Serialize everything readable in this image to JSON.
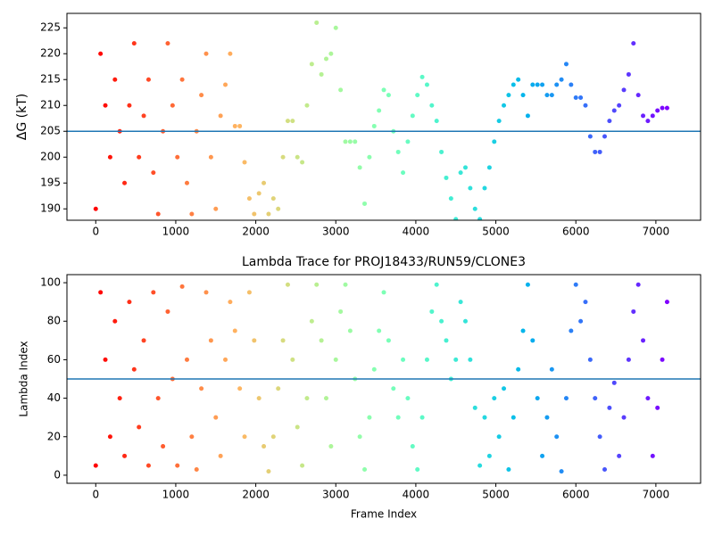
{
  "chart_data": [
    {
      "type": "scatter",
      "ylabel": "ΔG (kT)",
      "colormap": "rainbow_r",
      "hline": 205,
      "hline_color": "#1f77b4",
      "xlim": [
        -360,
        7559
      ],
      "ylim": [
        187.8,
        227.8
      ],
      "xticks": [
        0,
        1000,
        2000,
        3000,
        4000,
        5000,
        6000,
        7000
      ],
      "yticks": [
        190,
        195,
        200,
        205,
        210,
        215,
        220,
        225
      ],
      "x": [
        0,
        60,
        120,
        180,
        240,
        300,
        360,
        420,
        480,
        540,
        600,
        660,
        720,
        780,
        840,
        900,
        960,
        1020,
        1080,
        1140,
        1200,
        1260,
        1320,
        1380,
        1440,
        1500,
        1560,
        1620,
        1680,
        1740,
        1800,
        1860,
        1920,
        1980,
        2040,
        2100,
        2160,
        2220,
        2280,
        2340,
        2400,
        2460,
        2520,
        2580,
        2640,
        2700,
        2760,
        2820,
        2880,
        2940,
        3000,
        3060,
        3120,
        3180,
        3240,
        3300,
        3360,
        3420,
        3480,
        3540,
        3600,
        3660,
        3720,
        3780,
        3840,
        3900,
        3960,
        4020,
        4080,
        4140,
        4200,
        4260,
        4320,
        4380,
        4440,
        4500,
        4560,
        4620,
        4680,
        4740,
        4800,
        4860,
        4920,
        4980,
        5040,
        5100,
        5160,
        5220,
        5280,
        5340,
        5400,
        5460,
        5520,
        5580,
        5640,
        5700,
        5760,
        5820,
        5880,
        5940,
        6000,
        6060,
        6120,
        6180,
        6240,
        6300,
        6360,
        6420,
        6480,
        6540,
        6600,
        6660,
        6720,
        6780,
        6840,
        6900,
        6960,
        7020,
        7080,
        7140
      ],
      "values": [
        190,
        220,
        210,
        200,
        215,
        205,
        195,
        210,
        222,
        200,
        208,
        215,
        197,
        189,
        205,
        222,
        210,
        200,
        215,
        195,
        189,
        205,
        212,
        220,
        200,
        190,
        208,
        214,
        220,
        206,
        206,
        199,
        192,
        189,
        193,
        195,
        189,
        192,
        190,
        200,
        207,
        207,
        200,
        199,
        210,
        218,
        226,
        216,
        219,
        220,
        225,
        213,
        203,
        203,
        203,
        198,
        191,
        200,
        206,
        209,
        213,
        212,
        205,
        201,
        197,
        203,
        208,
        212,
        215.5,
        214,
        210,
        207,
        201,
        196,
        192,
        188,
        197,
        198,
        194,
        190,
        188,
        194,
        198,
        203,
        207,
        210,
        212,
        214,
        215,
        212,
        208,
        214,
        214,
        214,
        212,
        212,
        214,
        215,
        218,
        214,
        211.5,
        211.5,
        210,
        204,
        201,
        201,
        204,
        207,
        209,
        210,
        213,
        216,
        222,
        212,
        208,
        207,
        208,
        209,
        209.5,
        209.5
      ]
    },
    {
      "type": "scatter",
      "title": "Lambda Trace for PROJ18433/RUN59/CLONE3",
      "xlabel": "Frame Index",
      "ylabel": "Lambda Index",
      "colormap": "rainbow_r",
      "hline": 50,
      "hline_color": "#1f77b4",
      "xlim": [
        -360,
        7559
      ],
      "ylim": [
        -4.2,
        104.2
      ],
      "xticks": [
        0,
        1000,
        2000,
        3000,
        4000,
        5000,
        6000,
        7000
      ],
      "yticks": [
        0,
        20,
        40,
        60,
        80,
        100
      ],
      "x": [
        0,
        60,
        120,
        180,
        240,
        300,
        360,
        420,
        480,
        540,
        600,
        660,
        720,
        780,
        840,
        900,
        960,
        1020,
        1080,
        1140,
        1200,
        1260,
        1320,
        1380,
        1440,
        1500,
        1560,
        1620,
        1680,
        1740,
        1800,
        1860,
        1920,
        1980,
        2040,
        2100,
        2160,
        2220,
        2280,
        2340,
        2400,
        2460,
        2520,
        2580,
        2640,
        2700,
        2760,
        2820,
        2880,
        2940,
        3000,
        3060,
        3120,
        3180,
        3240,
        3300,
        3360,
        3420,
        3480,
        3540,
        3600,
        3660,
        3720,
        3780,
        3840,
        3900,
        3960,
        4020,
        4080,
        4140,
        4200,
        4260,
        4320,
        4380,
        4440,
        4500,
        4560,
        4620,
        4680,
        4740,
        4800,
        4860,
        4920,
        4980,
        5040,
        5100,
        5160,
        5220,
        5280,
        5340,
        5400,
        5460,
        5520,
        5580,
        5640,
        5700,
        5760,
        5820,
        5880,
        5940,
        6000,
        6060,
        6120,
        6180,
        6240,
        6300,
        6360,
        6420,
        6480,
        6540,
        6600,
        6660,
        6720,
        6780,
        6840,
        6900,
        6960,
        7020,
        7080,
        7140
      ],
      "values": [
        5,
        95,
        60,
        20,
        80,
        40,
        10,
        90,
        55,
        25,
        70,
        5,
        95,
        40,
        15,
        85,
        50,
        5,
        98,
        60,
        20,
        3,
        45,
        95,
        70,
        30,
        10,
        60,
        90,
        75,
        45,
        20,
        95,
        70,
        40,
        15,
        2,
        20,
        45,
        70,
        99,
        60,
        25,
        5,
        40,
        80,
        99,
        70,
        40,
        15,
        60,
        85,
        99,
        75,
        50,
        20,
        3,
        30,
        55,
        75,
        95,
        70,
        45,
        30,
        60,
        40,
        15,
        3,
        30,
        60,
        85,
        99,
        80,
        70,
        50,
        60,
        90,
        80,
        60,
        35,
        5,
        30,
        10,
        40,
        20,
        45,
        3,
        30,
        55,
        75,
        99,
        70,
        40,
        10,
        30,
        55,
        20,
        2,
        40,
        75,
        99,
        80,
        90,
        60,
        40,
        20,
        3,
        35,
        48,
        10,
        30,
        60,
        85,
        99,
        70,
        40,
        10,
        35,
        60,
        90
      ]
    }
  ]
}
